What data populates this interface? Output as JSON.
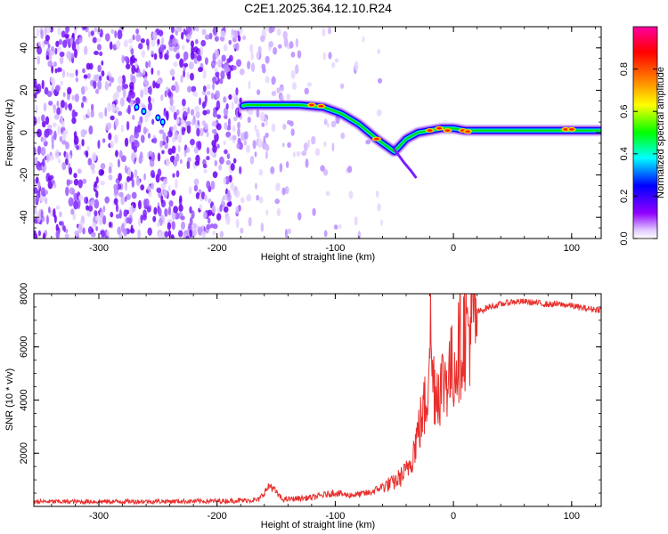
{
  "figure": {
    "title": "C2E1.2025.364.12.10.R24"
  },
  "chart_data": [
    {
      "type": "heatmap",
      "xlabel": "Height of straight line (km)",
      "ylabel": "Frequency (Hz)",
      "xlim": [
        -355,
        125
      ],
      "ylim": [
        -50,
        50
      ],
      "xticks": [
        -300,
        -200,
        -100,
        0,
        100
      ],
      "yticks": [
        -40,
        -20,
        0,
        20,
        40
      ],
      "grid": false,
      "colorbar": {
        "label": "Normalized spectral amplitude",
        "range": [
          0,
          1
        ],
        "ticks": [
          0.0,
          0.2,
          0.4,
          0.6,
          0.8
        ],
        "tick_labels": [
          "0.0",
          "0.2",
          "0.4",
          "0.6",
          "0.8"
        ],
        "colormap": [
          "#ffffff",
          "#9000ff",
          "#0000ff",
          "#00ffff",
          "#00ff00",
          "#ffff00",
          "#ff8000",
          "#ff0000",
          "#ff00a0"
        ]
      },
      "ridge": {
        "x": [
          -275,
          -245,
          -175,
          -150,
          -130,
          -110,
          -95,
          -80,
          -65,
          -50,
          -45,
          -40,
          -30,
          -20,
          -10,
          0,
          10,
          30,
          60,
          100,
          125
        ],
        "y": [
          12,
          6,
          13,
          13,
          13,
          12,
          9,
          4,
          -3,
          -9,
          -6,
          -3,
          0,
          1,
          2,
          2,
          1,
          1,
          1,
          1,
          1
        ]
      }
    },
    {
      "type": "line",
      "xlabel": "Height of straight line (km)",
      "ylabel": "SNR (10 * v/v)",
      "xlim": [
        -355,
        125
      ],
      "ylim": [
        0,
        8000
      ],
      "xticks": [
        -300,
        -200,
        -100,
        0,
        100
      ],
      "yticks": [
        2000,
        4000,
        6000,
        8000
      ],
      "grid": false,
      "line_color": "#e8302d",
      "series": [
        {
          "x": [
            -355,
            -300,
            -250,
            -200,
            -165,
            -155,
            -145,
            -120,
            -100,
            -90,
            -80,
            -70,
            -60,
            -50,
            -45,
            -40,
            -35,
            -30,
            -25,
            -22,
            -20,
            -18,
            -15,
            -10,
            -5,
            0,
            5,
            10,
            15,
            20,
            30,
            40,
            50,
            60,
            70,
            80,
            90,
            100,
            110,
            125
          ],
          "y": [
            180,
            180,
            190,
            200,
            240,
            800,
            260,
            330,
            520,
            420,
            450,
            520,
            750,
            900,
            1100,
            1300,
            1900,
            2800,
            3600,
            4300,
            7200,
            5000,
            4400,
            4600,
            5000,
            5200,
            6000,
            6600,
            6800,
            7300,
            7500,
            7600,
            7700,
            7700,
            7650,
            7600,
            7600,
            7550,
            7450,
            7400
          ]
        }
      ]
    }
  ]
}
